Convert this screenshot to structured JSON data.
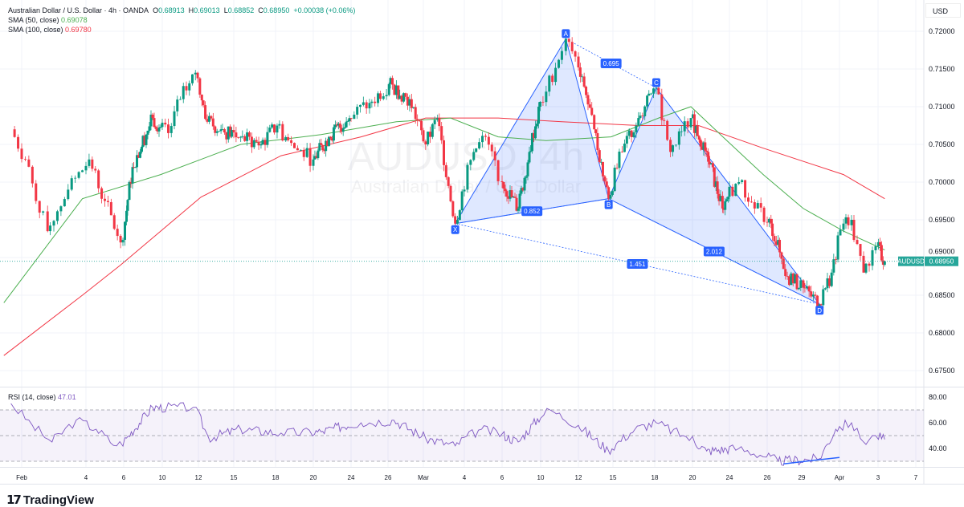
{
  "legend": {
    "symbol": "Australian Dollar / U.S. Dollar · 4h · OANDA",
    "o_label": "O",
    "o": "0.68913",
    "h_label": "H",
    "h": "0.69013",
    "l_label": "L",
    "l": "0.68852",
    "c_label": "C",
    "c": "0.68950",
    "change": "+0.00038 (+0.06%)",
    "sma50_label": "SMA (50, close)",
    "sma50": "0.69078",
    "sma100_label": "SMA (100, close)",
    "sma100": "0.69780",
    "rsi_label": "RSI (14, close)",
    "rsi": "47.01"
  },
  "currency": "USD",
  "watermark": {
    "title": "AUDUSD, 4h",
    "subtitle": "Australian Dollar / U.S. Dollar"
  },
  "logo": "TradingView",
  "colors": {
    "up": "#089981",
    "down": "#f23645",
    "sma50": "#4caf50",
    "sma100": "#f23645",
    "rsi": "#7e57c2",
    "pattern": "#2962ff",
    "last_price": "#26a69a"
  },
  "chart_data": {
    "type": "candlestick",
    "symbol_tag": "AUDUSD",
    "last_price": 0.6895,
    "y_ticks": [
      "0.72000",
      "0.71500",
      "0.71000",
      "0.70500",
      "0.70000",
      "0.69500",
      "0.69000",
      "0.68500",
      "0.68000",
      "0.67500"
    ],
    "ylim": [
      0.6725,
      0.7225
    ],
    "x_ticks": [
      {
        "label": "Feb",
        "date": "02-01"
      },
      {
        "label": "4",
        "date": "02-04"
      },
      {
        "label": "6",
        "date": "02-06"
      },
      {
        "label": "10",
        "date": "02-10"
      },
      {
        "label": "12",
        "date": "02-12"
      },
      {
        "label": "15",
        "date": "02-15"
      },
      {
        "label": "18",
        "date": "02-18"
      },
      {
        "label": "20",
        "date": "02-20"
      },
      {
        "label": "24",
        "date": "02-24"
      },
      {
        "label": "26",
        "date": "02-26"
      },
      {
        "label": "Mar",
        "date": "03-01"
      },
      {
        "label": "4",
        "date": "03-04"
      },
      {
        "label": "6",
        "date": "03-06"
      },
      {
        "label": "10",
        "date": "03-10"
      },
      {
        "label": "12",
        "date": "03-12"
      },
      {
        "label": "15",
        "date": "03-15"
      },
      {
        "label": "18",
        "date": "03-18"
      },
      {
        "label": "20",
        "date": "03-20"
      },
      {
        "label": "24",
        "date": "03-24"
      },
      {
        "label": "26",
        "date": "03-26"
      },
      {
        "label": "29",
        "date": "03-29"
      },
      {
        "label": "Apr",
        "date": "04-01"
      },
      {
        "label": "3",
        "date": "04-03"
      },
      {
        "label": "7",
        "date": "04-07"
      }
    ],
    "price_path": [
      [
        "01-31 12:00",
        0.707
      ],
      [
        "02-01 04:00",
        0.703
      ],
      [
        "02-02 05:00",
        0.6935
      ],
      [
        "02-03 04:00",
        0.699
      ],
      [
        "02-04 04:00",
        0.703
      ],
      [
        "02-05 00:00",
        0.6975
      ],
      [
        "02-05 20:00",
        0.692
      ],
      [
        "02-06 22:00",
        0.702
      ],
      [
        "02-09 00:00",
        0.7085
      ],
      [
        "02-10 08:00",
        0.7065
      ],
      [
        "02-11 00:00",
        0.711
      ],
      [
        "02-11 20:00",
        0.7145
      ],
      [
        "02-12 18:00",
        0.708
      ],
      [
        "02-13 22:00",
        0.707
      ],
      [
        "02-15 12:00",
        0.706
      ],
      [
        "02-16 23:00",
        0.705
      ],
      [
        "02-18 02:00",
        0.7075
      ],
      [
        "02-19 00:00",
        0.7045
      ],
      [
        "02-20 00:00",
        0.703
      ],
      [
        "02-21 16:00",
        0.706
      ],
      [
        "02-23 20:00",
        0.7085
      ],
      [
        "02-25 00:00",
        0.7105
      ],
      [
        "02-26 02:00",
        0.713
      ],
      [
        "02-27 20:00",
        0.711
      ],
      [
        "03-01 04:00",
        0.705
      ],
      [
        "03-02 01:00",
        0.7085
      ],
      [
        "03-03 08:00",
        0.6945
      ],
      [
        "03-04 12:00",
        0.704
      ],
      [
        "03-05 03:00",
        0.706
      ],
      [
        "03-06 00:00",
        0.7
      ],
      [
        "03-07 16:00",
        0.6965
      ],
      [
        "03-08 20:00",
        0.704
      ],
      [
        "03-10 07:00",
        0.712
      ],
      [
        "03-11 08:00",
        0.719
      ],
      [
        "03-12 08:00",
        0.714
      ],
      [
        "03-13 09:00",
        0.707
      ],
      [
        "03-14 15:00",
        0.6978
      ],
      [
        "03-15 16:00",
        0.704
      ],
      [
        "03-16 20:00",
        0.7085
      ],
      [
        "03-18 02:00",
        0.7125
      ],
      [
        "03-18 20:00",
        0.704
      ],
      [
        "03-19 22:00",
        0.7085
      ],
      [
        "03-21 13:00",
        0.704
      ],
      [
        "03-23 06:00",
        0.6965
      ],
      [
        "03-24 12:00",
        0.7
      ],
      [
        "03-25 08:00",
        0.6965
      ],
      [
        "03-26 08:00",
        0.6945
      ],
      [
        "03-27 18:00",
        0.6875
      ],
      [
        "03-29 03:00",
        0.686
      ],
      [
        "03-30 10:00",
        0.6838
      ],
      [
        "03-31 09:00",
        0.688
      ],
      [
        "04-01 05:00",
        0.6945
      ],
      [
        "04-01 15:00",
        0.695
      ],
      [
        "04-02 06:00",
        0.688
      ],
      [
        "04-02 21:00",
        0.6915
      ],
      [
        "04-03 17:00",
        0.6895
      ]
    ],
    "sma50": [
      [
        "01-31 04:00",
        0.684
      ],
      [
        "02-03 20:00",
        0.6978
      ],
      [
        "02-09 20:00",
        0.701
      ],
      [
        "02-15 12:00",
        0.705
      ],
      [
        "02-20 20:00",
        0.7063
      ],
      [
        "02-26 17:00",
        0.708
      ],
      [
        "03-03 00:00",
        0.7085
      ],
      [
        "03-05 19:00",
        0.706
      ],
      [
        "03-10 07:00",
        0.7055
      ],
      [
        "03-14 20:00",
        0.706
      ],
      [
        "03-18 05:00",
        0.7085
      ],
      [
        "03-19 22:00",
        0.71
      ],
      [
        "03-23 07:00",
        0.706
      ],
      [
        "03-25 19:00",
        0.701
      ],
      [
        "03-29 03:00",
        0.6965
      ],
      [
        "04-01 05:00",
        0.6935
      ],
      [
        "04-03 17:00",
        0.691
      ]
    ],
    "sma100": [
      [
        "01-31 04:00",
        0.677
      ],
      [
        "02-03 20:00",
        0.685
      ],
      [
        "02-05 20:00",
        0.689
      ],
      [
        "02-12 05:00",
        0.698
      ],
      [
        "02-18 07:00",
        0.7035
      ],
      [
        "02-24 13:00",
        0.706
      ],
      [
        "03-01 04:00",
        0.7085
      ],
      [
        "03-05 19:00",
        0.7085
      ],
      [
        "03-11 03:00",
        0.708
      ],
      [
        "03-16 21:00",
        0.7075
      ],
      [
        "03-20 16:00",
        0.7075
      ],
      [
        "03-25 19:00",
        0.7045
      ],
      [
        "04-01 05:00",
        0.701
      ],
      [
        "04-03 17:00",
        0.6978
      ]
    ],
    "pattern": {
      "points": [
        {
          "label": "X",
          "date": "03-03 08:00",
          "price": 0.6945
        },
        {
          "label": "A",
          "date": "03-11 08:00",
          "price": 0.719
        },
        {
          "label": "B",
          "date": "03-14 15:00",
          "price": 0.6978
        },
        {
          "label": "C",
          "date": "03-18 02:00",
          "price": 0.7125
        },
        {
          "label": "D",
          "date": "03-30 10:00",
          "price": 0.6838
        }
      ],
      "ratios": {
        "XB": "0.852",
        "AC": "0.695",
        "BD": "2.012",
        "XD": "1.451"
      }
    },
    "rsi": {
      "ticks": [
        "80.00",
        "60.00",
        "40.00"
      ],
      "ylim": [
        20,
        85
      ],
      "bands": [
        30,
        70
      ],
      "mid": 50,
      "values": [
        [
          "01-31 12:00",
          75
        ],
        [
          "02-01 12:00",
          58
        ],
        [
          "02-02 10:00",
          45
        ],
        [
          "02-03 13:00",
          62
        ],
        [
          "02-04 13:00",
          55
        ],
        [
          "02-05 15:00",
          42
        ],
        [
          "02-09 00:00",
          72
        ],
        [
          "02-11 17:00",
          72
        ],
        [
          "02-12 21:00",
          48
        ],
        [
          "02-15 12:00",
          55
        ],
        [
          "02-18 07:00",
          52
        ],
        [
          "02-20 20:00",
          53
        ],
        [
          "02-24 13:00",
          60
        ],
        [
          "02-26 12:00",
          62
        ],
        [
          "03-01 04:00",
          48
        ],
        [
          "03-03 08:00",
          42
        ],
        [
          "03-04 22:00",
          55
        ],
        [
          "03-07 16:00",
          45
        ],
        [
          "03-10 12:00",
          70
        ],
        [
          "03-12 00:00",
          58
        ],
        [
          "03-14 15:00",
          38
        ],
        [
          "03-16 14:00",
          55
        ],
        [
          "03-18 02:00",
          60
        ],
        [
          "03-19 12:00",
          50
        ],
        [
          "03-21 13:00",
          38
        ],
        [
          "03-24 12:00",
          40
        ],
        [
          "03-26 23:00",
          30
        ],
        [
          "03-30 10:00",
          32
        ],
        [
          "03-31 17:00",
          55
        ],
        [
          "04-01 15:00",
          60
        ],
        [
          "04-02 06:00",
          45
        ],
        [
          "04-02 21:00",
          50
        ],
        [
          "04-03 17:00",
          47
        ]
      ],
      "divergence": [
        [
          "03-27 10:00",
          28
        ],
        [
          "04-01 00:00",
          33
        ]
      ]
    }
  }
}
